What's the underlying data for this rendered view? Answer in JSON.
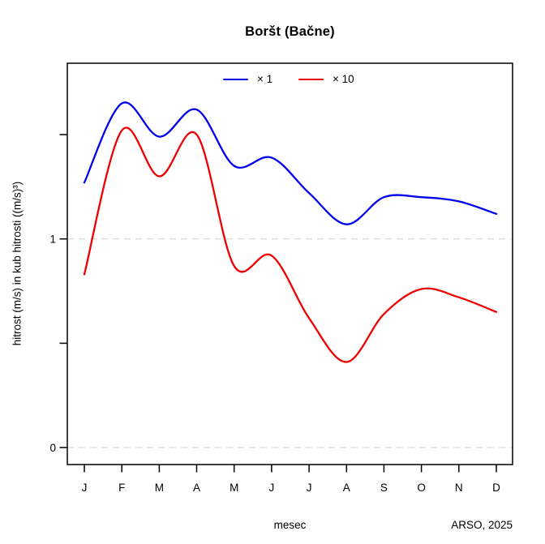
{
  "title": "Boršt (Bačne)",
  "y_axis": {
    "label": "hitrost (m/s) in kub hitrosti ((m/s)³)",
    "tick_labels_shown": [
      "0",
      "1"
    ]
  },
  "footer": {
    "xlabel": "mesec",
    "source": "ARSO, 2025"
  },
  "legend": {
    "items": [
      {
        "label": "× 1",
        "color": "#0000ee"
      },
      {
        "label": "× 10",
        "color": "#ee0000"
      }
    ]
  },
  "chart_data": {
    "type": "line",
    "title": "Boršt (Bačne)",
    "xlabel": "mesec",
    "ylabel": "hitrost (m/s) in kub hitrosti ((m/s)³)",
    "categories": [
      "J",
      "F",
      "M",
      "A",
      "M",
      "J",
      "J",
      "A",
      "S",
      "O",
      "N",
      "D"
    ],
    "series": [
      {
        "name": "× 1",
        "color": "#0000ee",
        "values": [
          1.27,
          1.65,
          1.49,
          1.62,
          1.35,
          1.39,
          1.22,
          1.07,
          1.2,
          1.2,
          1.18,
          1.12
        ]
      },
      {
        "name": "× 10",
        "color": "#ee0000",
        "values": [
          0.83,
          1.52,
          1.3,
          1.5,
          0.87,
          0.92,
          0.62,
          0.41,
          0.64,
          0.76,
          0.72,
          0.65
        ]
      }
    ],
    "ylim": [
      -0.08,
      1.84
    ],
    "y_ticks": [
      {
        "value": 0,
        "label": "0"
      },
      {
        "value": 0.5,
        "label": ""
      },
      {
        "value": 1,
        "label": "1"
      },
      {
        "value": 1.5,
        "label": ""
      }
    ],
    "gridlines": {
      "values": [
        0,
        1
      ],
      "style": "dashed",
      "color": "#d6d6d6"
    },
    "smooth": true,
    "legend_position": "top-center-inside",
    "annotation": "ARSO, 2025"
  }
}
